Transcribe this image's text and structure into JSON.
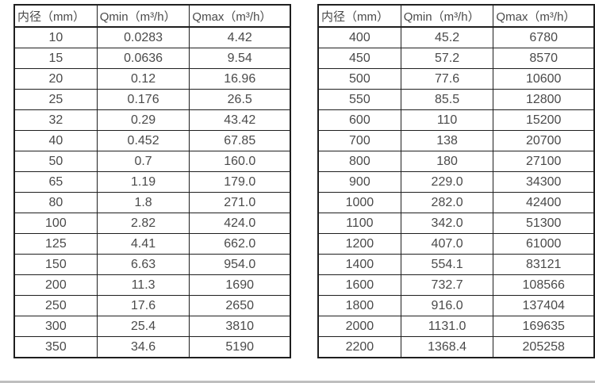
{
  "colors": {
    "border-color": "#1f1f1f",
    "text-color": "#4a4a4a",
    "bottom-edge-color": "#bfbfbf",
    "bg-color": "#ffffff"
  },
  "tables": [
    {
      "name": "flow-rate-table-dn10-350",
      "headers": [
        "内径（mm）",
        "Qmin（m³/h）",
        "Qmax（m³/h）"
      ],
      "rows": [
        [
          "10",
          "0.0283",
          "4.42"
        ],
        [
          "15",
          "0.0636",
          "9.54"
        ],
        [
          "20",
          "0.12",
          "16.96"
        ],
        [
          "25",
          "0.176",
          "26.5"
        ],
        [
          "32",
          "0.29",
          "43.42"
        ],
        [
          "40",
          "0.452",
          "67.85"
        ],
        [
          "50",
          "0.7",
          "160.0"
        ],
        [
          "65",
          "1.19",
          "179.0"
        ],
        [
          "80",
          "1.8",
          "271.0"
        ],
        [
          "100",
          "2.82",
          "424.0"
        ],
        [
          "125",
          "4.41",
          "662.0"
        ],
        [
          "150",
          "6.63",
          "954.0"
        ],
        [
          "200",
          "11.3",
          "1690"
        ],
        [
          "250",
          "17.6",
          "2650"
        ],
        [
          "300",
          "25.4",
          "3810"
        ],
        [
          "350",
          "34.6",
          "5190"
        ]
      ]
    },
    {
      "name": "flow-rate-table-dn400-2200",
      "headers": [
        "内径（mm）",
        "Qmin（m³/h）",
        "Qmax（m³/h）"
      ],
      "rows": [
        [
          "400",
          "45.2",
          "6780"
        ],
        [
          "450",
          "57.2",
          "8570"
        ],
        [
          "500",
          "77.6",
          "10600"
        ],
        [
          "550",
          "85.5",
          "12800"
        ],
        [
          "600",
          "110",
          "15200"
        ],
        [
          "700",
          "138",
          "20700"
        ],
        [
          "800",
          "180",
          "27100"
        ],
        [
          "900",
          "229.0",
          "34300"
        ],
        [
          "1000",
          "282.0",
          "42400"
        ],
        [
          "1100",
          "342.0",
          "51300"
        ],
        [
          "1200",
          "407.0",
          "61000"
        ],
        [
          "1400",
          "554.1",
          "83121"
        ],
        [
          "1600",
          "732.7",
          "108566"
        ],
        [
          "1800",
          "916.0",
          "137404"
        ],
        [
          "2000",
          "1131.0",
          "169635"
        ],
        [
          "2200",
          "1368.4",
          "205258"
        ]
      ]
    }
  ]
}
